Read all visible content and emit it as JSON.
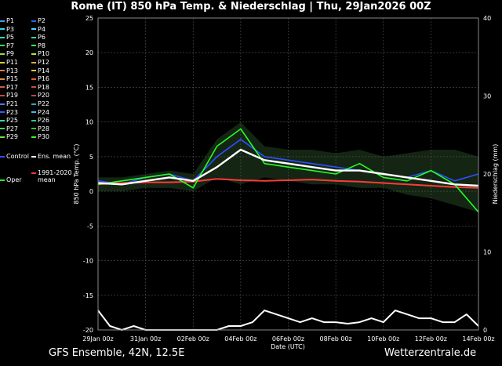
{
  "title": "Rome  (IT)  850 hPa Temp. & Niederschlag | Thu, 29Jan2026 00Z",
  "footer_left": "GFS Ensemble, 42N, 12.5E",
  "footer_right": "Wetterzentrale.de",
  "legend": {
    "members": [
      {
        "label": "P1",
        "color": "#4a9bff"
      },
      {
        "label": "P2",
        "color": "#2f5fff"
      },
      {
        "label": "P3",
        "color": "#2fd9e8"
      },
      {
        "label": "P4",
        "color": "#55ccff"
      },
      {
        "label": "P5",
        "color": "#23e0c4"
      },
      {
        "label": "P6",
        "color": "#3fd18a"
      },
      {
        "label": "P7",
        "color": "#2ee05a"
      },
      {
        "label": "P8",
        "color": "#47ff3a"
      },
      {
        "label": "P9",
        "color": "#8de43c"
      },
      {
        "label": "P10",
        "color": "#b8e13e"
      },
      {
        "label": "P11",
        "color": "#d4d43b"
      },
      {
        "label": "P12",
        "color": "#e0a83a"
      },
      {
        "label": "P13",
        "color": "#e07a3a"
      },
      {
        "label": "P14",
        "color": "#e0c73a"
      },
      {
        "label": "P15",
        "color": "#e0903a"
      },
      {
        "label": "P16",
        "color": "#e05e3a"
      },
      {
        "label": "P17",
        "color": "#d2603c"
      },
      {
        "label": "P18",
        "color": "#c84e3a"
      },
      {
        "label": "P19",
        "color": "#c8453a"
      },
      {
        "label": "P20",
        "color": "#b84a4a"
      },
      {
        "label": "P21",
        "color": "#3f7fff"
      },
      {
        "label": "P22",
        "color": "#3aa0c8"
      },
      {
        "label": "P23",
        "color": "#2f5fff"
      },
      {
        "label": "P24",
        "color": "#4ab0ff"
      },
      {
        "label": "P25",
        "color": "#35d4b0"
      },
      {
        "label": "P26",
        "color": "#27c89c"
      },
      {
        "label": "P27",
        "color": "#3ad46a"
      },
      {
        "label": "P28",
        "color": "#4ab04a"
      },
      {
        "label": "P29",
        "color": "#6fe03a"
      },
      {
        "label": "P30",
        "color": "#3aff2a"
      }
    ],
    "control": {
      "label": "Control",
      "color": "#2f4fff"
    },
    "ens_mean": {
      "label": "Ens. mean",
      "color": "#ffffff"
    },
    "clim_label_1": "1991-2020",
    "clim_label_2": "mean",
    "clim_color": "#ff3a3a",
    "oper": {
      "label": "Oper",
      "color": "#22ff22"
    }
  },
  "chart_data": {
    "type": "line",
    "ylabel_left": "850 hPa Temp. (°C)",
    "ylabel_right": "Niederschlag (mm)",
    "xlabel": "Date (UTC)",
    "ylim_left": [
      -20,
      25
    ],
    "ylim_right": [
      0,
      40
    ],
    "yticks_left": [
      -20,
      -15,
      -10,
      -5,
      0,
      5,
      10,
      15,
      20,
      25
    ],
    "yticks_right": [
      0,
      10,
      20,
      30,
      40
    ],
    "x_tick_labels": [
      "29Jan 00z",
      "31Jan 00z",
      "02Feb 00z",
      "04Feb 00z",
      "06Feb 00z",
      "08Feb 00z",
      "10Feb 00z",
      "12Feb 00z",
      "14Feb 00z"
    ],
    "x_days": [
      0,
      16
    ],
    "grid": true,
    "ens_mean_temp": {
      "x": [
        0,
        1,
        2,
        3,
        4,
        5,
        6,
        7,
        8,
        9,
        10,
        11,
        12,
        13,
        14,
        15,
        16
      ],
      "y": [
        1.2,
        1.0,
        1.5,
        2.0,
        1.5,
        3.5,
        6.0,
        4.5,
        4.0,
        3.5,
        3.0,
        3.0,
        2.5,
        2.0,
        1.5,
        1.0,
        0.8
      ]
    },
    "climatology_temp": {
      "x": [
        0,
        1,
        2,
        3,
        4,
        5,
        6,
        7,
        8,
        9,
        10,
        11,
        12,
        13,
        14,
        15,
        16
      ],
      "y": [
        1.0,
        1.2,
        1.3,
        1.3,
        1.4,
        1.8,
        1.6,
        1.5,
        1.6,
        1.7,
        1.5,
        1.4,
        1.2,
        1.0,
        0.8,
        0.6,
        0.5
      ]
    },
    "oper_temp": {
      "x": [
        0,
        1,
        2,
        3,
        4,
        5,
        6,
        7,
        8,
        9,
        10,
        11,
        12,
        13,
        14,
        15,
        16
      ],
      "y": [
        1.0,
        1.5,
        2.0,
        2.5,
        0.5,
        6.5,
        9.0,
        4.0,
        3.5,
        3.0,
        2.5,
        4.0,
        2.0,
        1.5,
        3.0,
        1.0,
        -3.0
      ]
    },
    "control_temp": {
      "x": [
        0,
        1,
        2,
        3,
        4,
        5,
        6,
        7,
        8,
        9,
        10,
        11,
        12,
        13,
        14,
        15,
        16
      ],
      "y": [
        1.5,
        1.0,
        2.0,
        2.5,
        1.5,
        5.0,
        7.5,
        5.0,
        4.5,
        4.0,
        3.5,
        3.0,
        2.5,
        2.0,
        3.0,
        1.5,
        2.5
      ]
    },
    "ens_mean_precip": {
      "x": [
        0,
        0.5,
        1,
        1.5,
        2,
        2.5,
        3,
        3.5,
        4,
        4.5,
        5,
        5.5,
        6,
        6.5,
        7,
        7.5,
        8,
        8.5,
        9,
        9.5,
        10,
        10.5,
        11,
        11.5,
        12,
        12.5,
        13,
        13.5,
        14,
        14.5,
        15,
        15.5,
        16
      ],
      "y": [
        2.5,
        0.5,
        0,
        0.5,
        0,
        0,
        0,
        0,
        0,
        0,
        0,
        0.5,
        0.5,
        1,
        2.5,
        2,
        1.5,
        1,
        1.5,
        1,
        1,
        0.8,
        1,
        1.5,
        1,
        2.5,
        2,
        1.5,
        1.5,
        1,
        1,
        2,
        0.5
      ]
    },
    "spread_temp": {
      "x": [
        0,
        1,
        2,
        3,
        4,
        5,
        6,
        7,
        8,
        9,
        10,
        11,
        12,
        13,
        14,
        15,
        16
      ],
      "lo": [
        0,
        0,
        0.5,
        0.5,
        0,
        2,
        1,
        2,
        1.5,
        1,
        1,
        0.5,
        0.5,
        -0.5,
        -1,
        -2,
        -3
      ],
      "hi": [
        2,
        2,
        2.5,
        3,
        2.5,
        7.5,
        10,
        6.5,
        6,
        6,
        5.5,
        6,
        5,
        5.5,
        6,
        6,
        5
      ]
    }
  }
}
